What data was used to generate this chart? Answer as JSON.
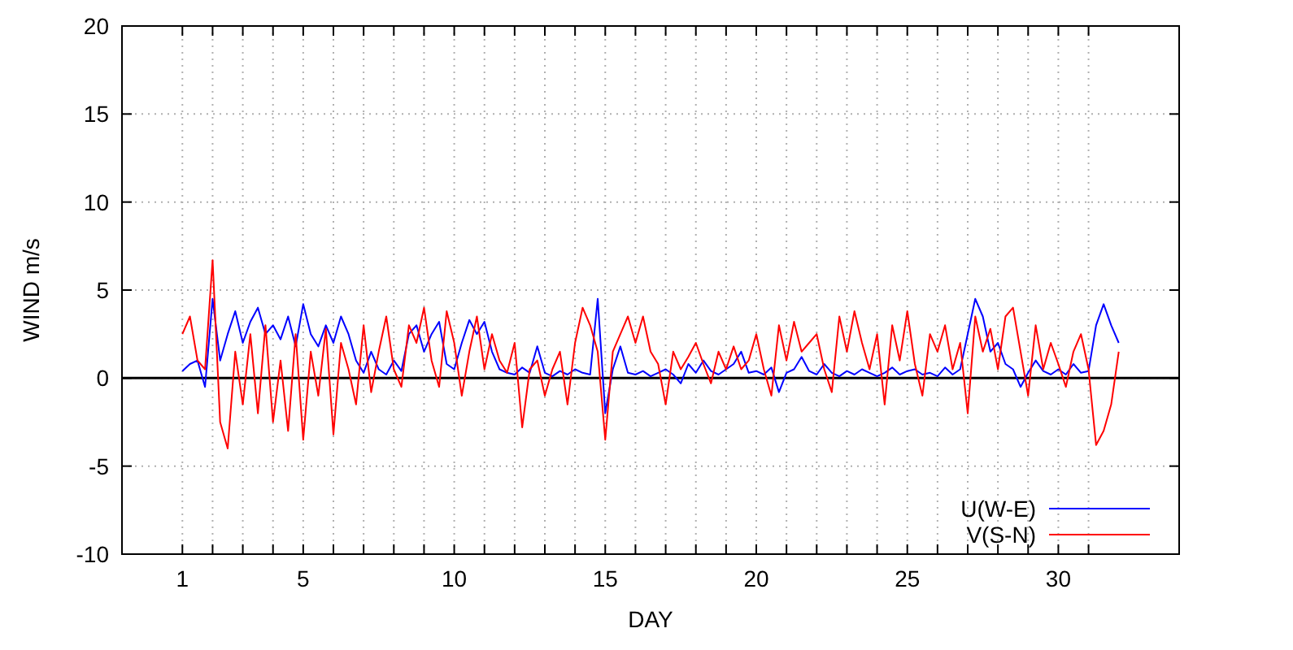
{
  "chart_data": {
    "type": "line",
    "xlabel": "DAY",
    "ylabel": "WIND m/s",
    "x": [
      1,
      1.25,
      1.5,
      1.75,
      2,
      2.25,
      2.5,
      2.75,
      3,
      3.25,
      3.5,
      3.75,
      4,
      4.25,
      4.5,
      4.75,
      5,
      5.25,
      5.5,
      5.75,
      6,
      6.25,
      6.5,
      6.75,
      7,
      7.25,
      7.5,
      7.75,
      8,
      8.25,
      8.5,
      8.75,
      9,
      9.25,
      9.5,
      9.75,
      10,
      10.25,
      10.5,
      10.75,
      11,
      11.25,
      11.5,
      11.75,
      12,
      12.25,
      12.5,
      12.75,
      13,
      13.25,
      13.5,
      13.75,
      14,
      14.25,
      14.5,
      14.75,
      15,
      15.25,
      15.5,
      15.75,
      16,
      16.25,
      16.5,
      16.75,
      17,
      17.25,
      17.5,
      17.75,
      18,
      18.25,
      18.5,
      18.75,
      19,
      19.25,
      19.5,
      19.75,
      20,
      20.25,
      20.5,
      20.75,
      21,
      21.25,
      21.5,
      21.75,
      22,
      22.25,
      22.5,
      22.75,
      23,
      23.25,
      23.5,
      23.75,
      24,
      24.25,
      24.5,
      24.75,
      25,
      25.25,
      25.5,
      25.75,
      26,
      26.25,
      26.5,
      26.75,
      27,
      27.25,
      27.5,
      27.75,
      28,
      28.25,
      28.5,
      28.75,
      29,
      29.25,
      29.5,
      29.75,
      30,
      30.25,
      30.5,
      30.75,
      31,
      31.25,
      31.5,
      31.75,
      32
    ],
    "series": [
      {
        "name": "U(W-E)",
        "color": "#0000ff",
        "values": [
          0.4,
          0.8,
          1.0,
          -0.5,
          4.5,
          1.0,
          2.5,
          3.8,
          2.0,
          3.2,
          4.0,
          2.5,
          3.0,
          2.2,
          3.5,
          1.8,
          4.2,
          2.5,
          1.8,
          3.0,
          2.0,
          3.5,
          2.5,
          1.0,
          0.3,
          1.5,
          0.5,
          0.2,
          1.0,
          0.4,
          2.5,
          3.0,
          1.5,
          2.5,
          3.2,
          0.8,
          0.5,
          2.0,
          3.3,
          2.5,
          3.2,
          1.5,
          0.5,
          0.3,
          0.2,
          0.6,
          0.3,
          1.8,
          0.3,
          0.1,
          0.4,
          0.2,
          0.5,
          0.3,
          0.2,
          4.5,
          -2.0,
          0.5,
          1.8,
          0.3,
          0.2,
          0.4,
          0.1,
          0.3,
          0.5,
          0.2,
          -0.3,
          0.8,
          0.3,
          1.0,
          0.4,
          0.2,
          0.5,
          0.8,
          1.5,
          0.3,
          0.4,
          0.2,
          0.6,
          -0.8,
          0.3,
          0.5,
          1.2,
          0.4,
          0.2,
          0.8,
          0.3,
          0.1,
          0.4,
          0.2,
          0.5,
          0.3,
          0.1,
          0.3,
          0.6,
          0.2,
          0.4,
          0.5,
          0.2,
          0.3,
          0.1,
          0.6,
          0.2,
          0.5,
          2.5,
          4.5,
          3.5,
          1.5,
          2.0,
          0.8,
          0.5,
          -0.5,
          0.3,
          1.0,
          0.4,
          0.2,
          0.5,
          0.2,
          0.8,
          0.3,
          0.4,
          3.0,
          4.2,
          3.0,
          2.0
        ]
      },
      {
        "name": "V(S-N)",
        "color": "#ff0000",
        "values": [
          2.5,
          3.5,
          1.0,
          0.5,
          6.7,
          -2.5,
          -4.0,
          1.5,
          -1.5,
          2.5,
          -2.0,
          3.0,
          -2.5,
          1.0,
          -3.0,
          2.5,
          -3.5,
          1.5,
          -1.0,
          2.8,
          -3.2,
          2.0,
          0.5,
          -1.5,
          3.0,
          -0.8,
          1.5,
          3.5,
          0.5,
          -0.5,
          3.0,
          2.0,
          4.0,
          1.0,
          -0.5,
          3.8,
          2.0,
          -1.0,
          1.5,
          3.5,
          0.5,
          2.5,
          1.0,
          0.3,
          2.0,
          -2.8,
          0.5,
          1.0,
          -1.0,
          0.5,
          1.5,
          -1.5,
          2.0,
          4.0,
          3.0,
          1.5,
          -3.5,
          1.5,
          2.5,
          3.5,
          2.0,
          3.5,
          1.5,
          0.8,
          -1.5,
          1.5,
          0.5,
          1.2,
          2.0,
          0.8,
          -0.3,
          1.5,
          0.5,
          1.8,
          0.5,
          1.0,
          2.5,
          0.5,
          -1.0,
          3.0,
          1.0,
          3.2,
          1.5,
          2.0,
          2.5,
          0.5,
          -0.8,
          3.5,
          1.5,
          3.8,
          2.0,
          0.5,
          2.5,
          -1.5,
          3.0,
          1.0,
          3.8,
          0.8,
          -1.0,
          2.5,
          1.5,
          3.0,
          0.5,
          2.0,
          -2.0,
          3.5,
          1.5,
          2.8,
          0.5,
          3.5,
          4.0,
          1.5,
          -1.0,
          3.0,
          0.5,
          2.0,
          0.8,
          -0.5,
          1.5,
          2.5,
          0.5,
          -3.8,
          -3.0,
          -1.5,
          1.5
        ]
      }
    ],
    "xlim": [
      -1,
      34
    ],
    "xticks": [
      1,
      {
        "value": 2,
        "label": null
      },
      {
        "value": 3,
        "label": null
      },
      {
        "value": 4,
        "label": null
      },
      5,
      {
        "value": 6,
        "label": null
      },
      {
        "value": 7,
        "label": null
      },
      {
        "value": 8,
        "label": null
      },
      {
        "value": 9,
        "label": null
      },
      10,
      {
        "value": 11,
        "label": null
      },
      {
        "value": 12,
        "label": null
      },
      {
        "value": 13,
        "label": null
      },
      {
        "value": 14,
        "label": null
      },
      15,
      {
        "value": 16,
        "label": null
      },
      {
        "value": 17,
        "label": null
      },
      {
        "value": 18,
        "label": null
      },
      {
        "value": 19,
        "label": null
      },
      20,
      {
        "value": 21,
        "label": null
      },
      {
        "value": 22,
        "label": null
      },
      {
        "value": 23,
        "label": null
      },
      {
        "value": 24,
        "label": null
      },
      25,
      {
        "value": 26,
        "label": null
      },
      {
        "value": 27,
        "label": null
      },
      {
        "value": 28,
        "label": null
      },
      {
        "value": 29,
        "label": null
      },
      30,
      {
        "value": 31,
        "label": null
      }
    ],
    "ylim": [
      -10,
      20
    ],
    "yticks": [
      -10,
      -5,
      0,
      5,
      10,
      15,
      20
    ],
    "ref_lines": [
      {
        "axis": "y",
        "value": 0,
        "color": "#000000"
      }
    ],
    "grid": true,
    "legend": "bottom right",
    "marker": "none",
    "line_style": "solid"
  }
}
